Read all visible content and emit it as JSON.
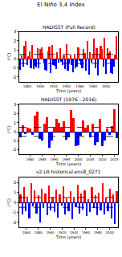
{
  "title": "El Niño 3.4 Index",
  "chart_data": [
    {
      "type": "bar",
      "title": "HADISST (Full Record)",
      "x_label": "Time (years)",
      "y_label": "(°C)",
      "x": [
        1870,
        1872,
        1874,
        1876,
        1878,
        1880,
        1882,
        1884,
        1886,
        1888,
        1890,
        1892,
        1894,
        1896,
        1898,
        1900,
        1902,
        1904,
        1906,
        1908,
        1910,
        1912,
        1914,
        1916,
        1918,
        1920,
        1922,
        1924,
        1926,
        1928,
        1930,
        1932,
        1934,
        1936,
        1938,
        1940,
        1942,
        1944,
        1946,
        1948,
        1950,
        1952,
        1954,
        1956,
        1958,
        1960,
        1962,
        1964,
        1966,
        1968,
        1970,
        1972,
        1974,
        1976,
        1978,
        1980,
        1982,
        1984,
        1986,
        1988,
        1990,
        1992,
        1994,
        1996,
        1998,
        2000,
        2002,
        2004,
        2006,
        2008,
        2010,
        2012,
        2014,
        2016
      ],
      "values": [
        -1.2,
        0.4,
        -0.8,
        1.5,
        2.0,
        -0.6,
        0.3,
        0.9,
        -1.0,
        1.6,
        -1.1,
        -0.7,
        -0.9,
        1.2,
        -1.0,
        1.1,
        1.3,
        0.7,
        -0.5,
        -1.2,
        -1.3,
        0.9,
        1.4,
        -1.5,
        1.6,
        -0.6,
        -0.7,
        -1.1,
        0.8,
        -0.4,
        1.2,
        -0.3,
        -0.6,
        0.4,
        -1.1,
        1.7,
        -1.3,
        -0.5,
        0.5,
        -0.6,
        -1.4,
        0.6,
        -1.0,
        -0.8,
        1.3,
        -0.2,
        -0.6,
        -1.0,
        1.1,
        0.7,
        -1.3,
        2.0,
        -1.7,
        0.8,
        -0.4,
        0.5,
        2.3,
        -1.0,
        1.2,
        -1.8,
        0.6,
        1.5,
        1.1,
        -0.8,
        2.4,
        -1.6,
        1.2,
        0.7,
        0.9,
        -1.5,
        -1.6,
        -0.8,
        0.5,
        2.6
      ],
      "colors": [
        "blue",
        "red",
        "blue",
        "red",
        "red",
        "blue",
        "red",
        "red",
        "blue",
        "red",
        "blue",
        "blue",
        "blue",
        "red",
        "blue",
        "red",
        "red",
        "red",
        "blue",
        "blue",
        "blue",
        "red",
        "red",
        "blue",
        "red",
        "blue",
        "blue",
        "blue",
        "red",
        "blue",
        "red",
        "blue",
        "blue",
        "red",
        "blue",
        "red",
        "blue",
        "blue",
        "red",
        "blue",
        "blue",
        "red",
        "blue",
        "blue",
        "red",
        "blue",
        "blue",
        "blue",
        "red",
        "red",
        "blue",
        "red",
        "blue",
        "red",
        "blue",
        "red",
        "red",
        "blue",
        "red",
        "blue",
        "red",
        "red",
        "red",
        "blue",
        "red",
        "blue",
        "red",
        "red",
        "red",
        "blue",
        "blue",
        "blue",
        "red",
        "red"
      ],
      "xlim": [
        1868,
        2018
      ],
      "xticks": [
        1880,
        1900,
        1920,
        1940,
        1960,
        1980,
        2000
      ],
      "ylim": [
        -2.5,
        3
      ],
      "yticks": [
        -2,
        -1,
        0,
        1,
        2,
        3
      ],
      "thresholds": [
        -0.5,
        0.5
      ]
    },
    {
      "type": "bar",
      "title": "HADISST (1976 - 2016)",
      "x_label": "Time (years)",
      "y_label": "(°C)",
      "x": [
        1976,
        1977,
        1978,
        1979,
        1980,
        1981,
        1982,
        1983,
        1984,
        1985,
        1986,
        1987,
        1988,
        1989,
        1990,
        1991,
        1992,
        1993,
        1994,
        1995,
        1996,
        1997,
        1998,
        1999,
        2000,
        2001,
        2002,
        2003,
        2004,
        2005,
        2006,
        2007,
        2008,
        2009,
        2010,
        2011,
        2012,
        2013,
        2014,
        2015,
        2016
      ],
      "values": [
        -0.6,
        0.7,
        -0.3,
        0.4,
        0.3,
        -0.4,
        1.8,
        2.2,
        -0.8,
        -1.0,
        0.9,
        1.6,
        -1.8,
        -1.0,
        0.4,
        1.4,
        1.0,
        0.5,
        1.1,
        -0.9,
        -0.6,
        2.4,
        1.5,
        -1.6,
        -1.5,
        -0.5,
        1.2,
        0.4,
        0.7,
        -0.6,
        0.9,
        -1.5,
        -1.2,
        1.4,
        -1.6,
        -1.0,
        0.3,
        -0.4,
        0.6,
        2.5,
        -0.7
      ],
      "colors": [
        "blue",
        "red",
        "blue",
        "red",
        "red",
        "blue",
        "red",
        "red",
        "blue",
        "blue",
        "red",
        "red",
        "blue",
        "blue",
        "red",
        "red",
        "red",
        "red",
        "red",
        "blue",
        "blue",
        "red",
        "red",
        "blue",
        "blue",
        "blue",
        "red",
        "red",
        "red",
        "blue",
        "red",
        "blue",
        "blue",
        "red",
        "blue",
        "blue",
        "red",
        "blue",
        "red",
        "red",
        "blue"
      ],
      "xlim": [
        1975.5,
        2016.5
      ],
      "xticks": [
        1980,
        1985,
        1990,
        1995,
        2000,
        2005,
        2010,
        2015
      ],
      "ylim": [
        -2.5,
        3
      ],
      "yticks": [
        -2,
        -1,
        0,
        1,
        2,
        3
      ],
      "thresholds": [
        -0.5,
        0.5
      ]
    },
    {
      "type": "bar",
      "title": "v2.LR.historical.ens8_0271",
      "x_label": "Time (years)",
      "y_label": "(°C)",
      "x": [
        1850,
        1853,
        1856,
        1859,
        1862,
        1865,
        1868,
        1871,
        1874,
        1877,
        1880,
        1883,
        1886,
        1889,
        1892,
        1895,
        1898,
        1901,
        1904,
        1907,
        1910,
        1913,
        1916,
        1919,
        1922,
        1925,
        1928,
        1931,
        1934,
        1937,
        1940,
        1943,
        1946,
        1949,
        1952,
        1955,
        1958,
        1961,
        1964,
        1967,
        1970,
        1973,
        1976,
        1979,
        1982,
        1985,
        1988,
        1991,
        1994,
        1997,
        2000,
        2003,
        2006,
        2009,
        2012
      ],
      "values": [
        0.8,
        -1.2,
        1.5,
        -0.9,
        0.6,
        -1.6,
        1.9,
        -0.4,
        1.2,
        -1.1,
        0.7,
        -2.0,
        1.4,
        -0.6,
        0.9,
        -1.3,
        1.7,
        -0.8,
        0.5,
        -1.0,
        1.3,
        -1.5,
        0.8,
        -0.3,
        1.6,
        -1.2,
        0.4,
        -0.9,
        1.1,
        -1.7,
        0.6,
        -0.5,
        1.8,
        -1.1,
        0.9,
        -0.7,
        1.2,
        -1.4,
        0.3,
        -1.0,
        1.5,
        -0.6,
        0.7,
        -1.3,
        1.0,
        -0.8,
        1.9,
        -1.2,
        0.5,
        -0.9,
        1.4,
        -1.6,
        0.8,
        -2.2,
        1.1
      ],
      "colors": [
        "red",
        "blue",
        "red",
        "blue",
        "red",
        "blue",
        "red",
        "blue",
        "red",
        "blue",
        "red",
        "blue",
        "red",
        "blue",
        "red",
        "blue",
        "red",
        "blue",
        "red",
        "blue",
        "red",
        "blue",
        "red",
        "blue",
        "red",
        "blue",
        "red",
        "blue",
        "red",
        "blue",
        "red",
        "blue",
        "red",
        "blue",
        "red",
        "blue",
        "red",
        "blue",
        "red",
        "blue",
        "red",
        "blue",
        "red",
        "blue",
        "red",
        "blue",
        "red",
        "blue",
        "red",
        "blue",
        "red",
        "blue",
        "red",
        "blue",
        "red"
      ],
      "xlim": [
        1848,
        2014
      ],
      "xticks": [
        1860,
        1880,
        1900,
        1920,
        1940,
        1960,
        1980,
        2000
      ],
      "ylim": [
        -2.5,
        2.5
      ],
      "yticks": [
        -2,
        -1,
        0,
        1,
        2
      ],
      "thresholds": [
        -0.5,
        0.5
      ]
    }
  ]
}
